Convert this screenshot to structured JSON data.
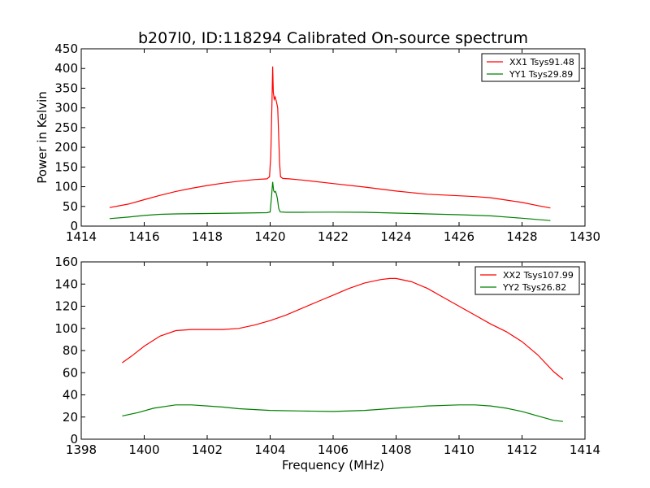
{
  "figure": {
    "title": "b207l0, ID:118294 Calibrated On-source spectrum",
    "ylabel": "Power in Kelvin",
    "xlabel": "Frequency (MHz)"
  },
  "colors": {
    "XX": "#ff0000",
    "YY": "#008000",
    "frame": "#000000"
  },
  "chart_data": [
    {
      "type": "line",
      "xlim": [
        1414,
        1430
      ],
      "ylim": [
        0,
        450
      ],
      "x_ticks": [
        1414,
        1416,
        1418,
        1420,
        1422,
        1424,
        1426,
        1428,
        1430
      ],
      "y_ticks": [
        0,
        50,
        100,
        150,
        200,
        250,
        300,
        350,
        400,
        450
      ],
      "legend_position": "top-right",
      "series": [
        {
          "name": "XX1 Tsys91.48",
          "color": "#ff0000",
          "points": [
            [
              1414.9,
              47
            ],
            [
              1415.5,
              56
            ],
            [
              1416.0,
              67
            ],
            [
              1416.5,
              78
            ],
            [
              1417.0,
              88
            ],
            [
              1417.5,
              96
            ],
            [
              1418.0,
              103
            ],
            [
              1418.5,
              109
            ],
            [
              1419.0,
              114
            ],
            [
              1419.5,
              118
            ],
            [
              1419.9,
              120
            ],
            [
              1419.98,
              125
            ],
            [
              1420.02,
              180
            ],
            [
              1420.06,
              320
            ],
            [
              1420.08,
              405
            ],
            [
              1420.1,
              340
            ],
            [
              1420.13,
              322
            ],
            [
              1420.16,
              328
            ],
            [
              1420.2,
              315
            ],
            [
              1420.24,
              300
            ],
            [
              1420.27,
              230
            ],
            [
              1420.3,
              160
            ],
            [
              1420.33,
              125
            ],
            [
              1420.4,
              121
            ],
            [
              1420.6,
              120
            ],
            [
              1421.0,
              117
            ],
            [
              1422.0,
              108
            ],
            [
              1423.0,
              99
            ],
            [
              1424.0,
              89
            ],
            [
              1425.0,
              81
            ],
            [
              1426.0,
              77
            ],
            [
              1426.5,
              75
            ],
            [
              1427.0,
              72
            ],
            [
              1427.5,
              66
            ],
            [
              1428.0,
              60
            ],
            [
              1428.5,
              52
            ],
            [
              1428.9,
              46
            ]
          ]
        },
        {
          "name": "YY1 Tsys29.89",
          "color": "#008000",
          "points": [
            [
              1414.9,
              19
            ],
            [
              1415.5,
              23
            ],
            [
              1416.0,
              27
            ],
            [
              1416.5,
              30
            ],
            [
              1417.0,
              31
            ],
            [
              1418.0,
              32
            ],
            [
              1419.0,
              33
            ],
            [
              1419.9,
              34
            ],
            [
              1420.0,
              36
            ],
            [
              1420.05,
              80
            ],
            [
              1420.08,
              112
            ],
            [
              1420.11,
              90
            ],
            [
              1420.14,
              86
            ],
            [
              1420.17,
              88
            ],
            [
              1420.2,
              80
            ],
            [
              1420.23,
              70
            ],
            [
              1420.27,
              45
            ],
            [
              1420.32,
              36
            ],
            [
              1420.5,
              35
            ],
            [
              1421.0,
              35
            ],
            [
              1422.0,
              35.5
            ],
            [
              1423.0,
              35
            ],
            [
              1424.0,
              33
            ],
            [
              1425.0,
              31
            ],
            [
              1426.0,
              29
            ],
            [
              1427.0,
              26
            ],
            [
              1428.0,
              20
            ],
            [
              1428.9,
              14
            ]
          ]
        }
      ]
    },
    {
      "type": "line",
      "xlim": [
        1398,
        1414
      ],
      "ylim": [
        0,
        160
      ],
      "x_ticks": [
        1398,
        1400,
        1402,
        1404,
        1406,
        1408,
        1410,
        1412,
        1414
      ],
      "y_ticks": [
        0,
        20,
        40,
        60,
        80,
        100,
        120,
        140,
        160
      ],
      "legend_position": "top-right",
      "series": [
        {
          "name": "XX2 Tsys107.99",
          "color": "#ff0000",
          "points": [
            [
              1399.3,
              69
            ],
            [
              1399.6,
              75
            ],
            [
              1400.0,
              84
            ],
            [
              1400.5,
              93
            ],
            [
              1401.0,
              98
            ],
            [
              1401.5,
              99
            ],
            [
              1402.0,
              99
            ],
            [
              1402.5,
              99
            ],
            [
              1403.0,
              100
            ],
            [
              1403.5,
              103
            ],
            [
              1404.0,
              107
            ],
            [
              1404.5,
              112
            ],
            [
              1405.0,
              118
            ],
            [
              1405.5,
              124
            ],
            [
              1406.0,
              130
            ],
            [
              1406.5,
              136
            ],
            [
              1407.0,
              141
            ],
            [
              1407.5,
              144
            ],
            [
              1407.8,
              145
            ],
            [
              1408.0,
              145
            ],
            [
              1408.5,
              142
            ],
            [
              1409.0,
              136
            ],
            [
              1409.5,
              128
            ],
            [
              1410.0,
              120
            ],
            [
              1410.5,
              112
            ],
            [
              1411.0,
              104
            ],
            [
              1411.5,
              97
            ],
            [
              1412.0,
              88
            ],
            [
              1412.5,
              76
            ],
            [
              1413.0,
              61
            ],
            [
              1413.3,
              54
            ]
          ]
        },
        {
          "name": "YY2 Tsys26.82",
          "color": "#008000",
          "points": [
            [
              1399.3,
              21
            ],
            [
              1399.8,
              24
            ],
            [
              1400.3,
              28
            ],
            [
              1401.0,
              31
            ],
            [
              1401.5,
              31
            ],
            [
              1402.0,
              30
            ],
            [
              1402.5,
              29
            ],
            [
              1403.0,
              27.5
            ],
            [
              1404.0,
              26
            ],
            [
              1405.0,
              25.5
            ],
            [
              1406.0,
              25
            ],
            [
              1407.0,
              26
            ],
            [
              1408.0,
              28
            ],
            [
              1409.0,
              30
            ],
            [
              1410.0,
              31
            ],
            [
              1410.5,
              31
            ],
            [
              1411.0,
              30
            ],
            [
              1411.5,
              28
            ],
            [
              1412.0,
              25
            ],
            [
              1412.5,
              21
            ],
            [
              1413.0,
              17
            ],
            [
              1413.3,
              16
            ]
          ]
        }
      ]
    }
  ]
}
